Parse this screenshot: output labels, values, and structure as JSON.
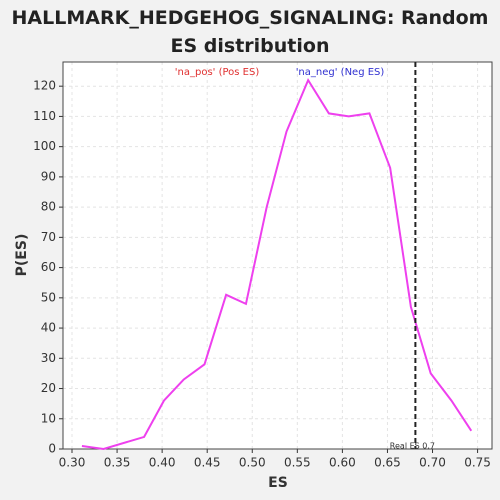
{
  "chart_data": {
    "type": "line",
    "title": "HALLMARK_HEDGEHOG_SIGNALING: Random ES distribution",
    "x_label": "ES",
    "y_label": "P(ES)",
    "annotations": [
      {
        "text": "'na_pos' (Pos ES)",
        "color": "#e03030"
      },
      {
        "text": "'na_neg' (Neg ES)",
        "color": "#3030d0"
      }
    ],
    "real_es": {
      "value": 0.681,
      "label": "Real ES 0.7"
    },
    "x": [
      0.311,
      0.335,
      0.38,
      0.402,
      0.424,
      0.447,
      0.471,
      0.493,
      0.516,
      0.538,
      0.562,
      0.585,
      0.607,
      0.63,
      0.653,
      0.676,
      0.698,
      0.721,
      0.743
    ],
    "series": [
      {
        "name": "P(ES)",
        "color": "#ee40ee",
        "values": [
          1,
          0,
          4,
          16,
          23,
          28,
          51,
          48,
          80,
          105,
          122,
          111,
          110,
          111,
          93,
          47,
          25,
          16,
          6
        ]
      }
    ],
    "xlim": [
      0.29,
      0.766
    ],
    "ylim": [
      0,
      128
    ],
    "xticks": [
      {
        "value": 0.3,
        "label": "0.30"
      },
      0.35,
      {
        "value": 0.4,
        "label": "0.40"
      },
      0.45,
      {
        "value": 0.5,
        "label": "0.50"
      },
      0.55,
      {
        "value": 0.6,
        "label": "0.60"
      },
      0.65,
      {
        "value": 0.7,
        "label": "0.70"
      },
      0.75
    ],
    "yticks": [
      0,
      10,
      20,
      30,
      40,
      50,
      60,
      70,
      80,
      90,
      100,
      110,
      120
    ],
    "grid": true
  }
}
